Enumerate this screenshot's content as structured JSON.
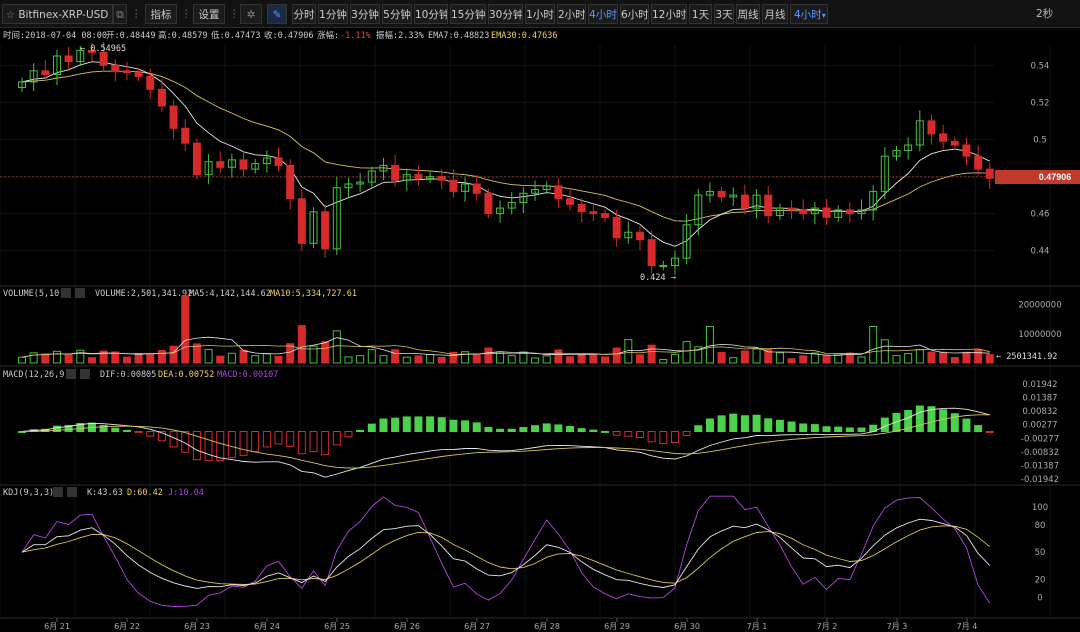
{
  "toolbar": {
    "star_icon": "star-icon",
    "symbol": "Bitfinex-XRP-USD",
    "indicators": "指标",
    "settings": "设置",
    "timeframes": [
      "分时",
      "1分钟",
      "3分钟",
      "5分钟",
      "10分钟",
      "15分钟",
      "30分钟",
      "1小时",
      "2小时",
      "4小时",
      "6小时",
      "12小时",
      "1天",
      "3天",
      "周线",
      "月线"
    ],
    "active_timeframe": "4小时",
    "dropdown_label": "4小时",
    "refresh": "2秒",
    "colors": {
      "active": "#5a9bff"
    }
  },
  "info": {
    "time": "时间:2018-07-04 08:00",
    "open": "开:0.48449",
    "high": "高:0.48579",
    "low": "低:0.47473",
    "close": "收:0.47906",
    "change_label": "涨幅:",
    "change_value": "-1.11%",
    "amplitude": "振幅:2.33%",
    "ema7": "EMA7:0.48823",
    "ema30": "EMA30:0.47636"
  },
  "price": {
    "current": "0.47906",
    "ticks": [
      "0.54",
      "0.52",
      "0.5",
      "0.48",
      "0.46",
      "0.44"
    ],
    "tick_values": [
      0.54,
      0.52,
      0.5,
      0.48,
      0.46,
      0.44
    ],
    "max_label": "0.54965",
    "min_label": "0.424"
  },
  "volume": {
    "title": "VOLUME(5,10)",
    "volume": "VOLUME:2,501,341.92",
    "ma5": "MA5:4,142,144.62",
    "ma10": "MA10:5,334,727.61",
    "ticks": [
      "20000000",
      "10000000"
    ],
    "current": "2501341.92"
  },
  "macd": {
    "title": "MACD(12,26,9)",
    "dif": "DIF:0.00805",
    "dea": "DEA:0.00752",
    "macd": "MACD:0.00107",
    "ticks": [
      "0.01942",
      "0.01387",
      "0.00832",
      "0.00277",
      "-0.00277",
      "-0.00832",
      "-0.01387",
      "-0.01942"
    ]
  },
  "kdj": {
    "title": "KDJ(9,3,3)",
    "k": "K:43.63",
    "d": "D:60.42",
    "j": "J:10.04",
    "ticks": [
      "100",
      "80",
      "50",
      "20",
      "0"
    ]
  },
  "dates": [
    "6月 21",
    "6月 22",
    "6月 23",
    "6月 24",
    "6月 25",
    "6月 26",
    "6月 27",
    "6月 28",
    "6月 29",
    "6月 30",
    "7月 1",
    "7月 2",
    "7月 3",
    "7月 4"
  ],
  "chart_data": {
    "type": "candlestick",
    "series": [
      {
        "name": "Bitfinex-XRP-USD"
      }
    ],
    "close": [
      0.531,
      0.537,
      0.535,
      0.545,
      0.542,
      0.548,
      0.547,
      0.54,
      0.537,
      0.536,
      0.534,
      0.527,
      0.518,
      0.506,
      0.498,
      0.481,
      0.488,
      0.485,
      0.489,
      0.484,
      0.487,
      0.49,
      0.486,
      0.468,
      0.444,
      0.461,
      0.441,
      0.474,
      0.476,
      0.477,
      0.483,
      0.486,
      0.478,
      0.481,
      0.479,
      0.48,
      0.478,
      0.472,
      0.476,
      0.471,
      0.46,
      0.463,
      0.466,
      0.471,
      0.473,
      0.475,
      0.468,
      0.465,
      0.461,
      0.46,
      0.458,
      0.447,
      0.45,
      0.446,
      0.432,
      0.432,
      0.436,
      0.454,
      0.47,
      0.472,
      0.469,
      0.47,
      0.463,
      0.47,
      0.459,
      0.463,
      0.462,
      0.46,
      0.463,
      0.458,
      0.462,
      0.46,
      0.462,
      0.472,
      0.491,
      0.494,
      0.497,
      0.51,
      0.503,
      0.499,
      0.497,
      0.491,
      0.484,
      0.479
    ],
    "volume_ma5": 4142144.62,
    "volume_ma10": 5334727.61,
    "macd_dif": 0.00805,
    "macd_dea": 0.00752,
    "macd_hist": 0.00107,
    "kdj_k": 43.63,
    "kdj_d": 60.42,
    "kdj_j": 10.04
  }
}
